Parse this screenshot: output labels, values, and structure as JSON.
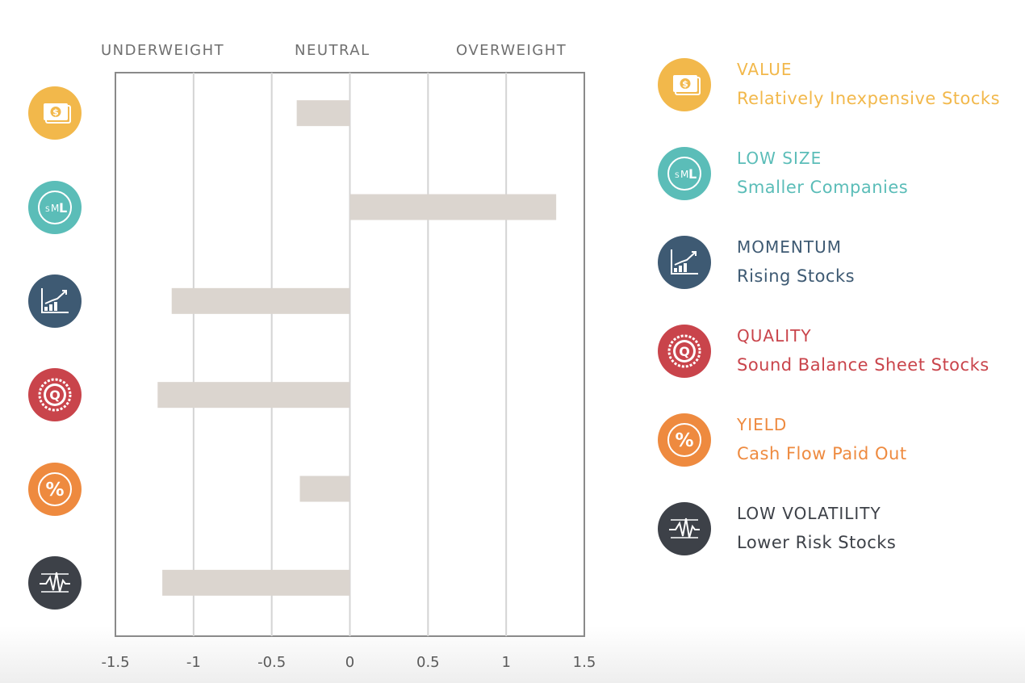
{
  "sentiment_labels": {
    "underweight": "UNDERWEIGHT",
    "neutral": "NEUTRAL",
    "overweight": "OVERWEIGHT"
  },
  "factors": [
    {
      "key": "value",
      "title": "VALUE",
      "description": "Relatively Inexpensive Stocks",
      "color": "#f2b84b",
      "icon": "dollar-bill-icon"
    },
    {
      "key": "low-size",
      "title": "LOW SIZE",
      "description": "Smaller Companies",
      "color": "#5bbdb8",
      "icon": "sml-size-icon"
    },
    {
      "key": "momentum",
      "title": "MOMENTUM",
      "description": "Rising Stocks",
      "color": "#3e5a73",
      "icon": "rising-chart-icon"
    },
    {
      "key": "quality",
      "title": "QUALITY",
      "description": "Sound Balance Sheet Stocks",
      "color": "#c9444b",
      "icon": "quality-seal-icon"
    },
    {
      "key": "yield",
      "title": "YIELD",
      "description": "Cash Flow Paid Out",
      "color": "#ee8a3f",
      "icon": "percent-icon"
    },
    {
      "key": "low-volatility",
      "title": "LOW VOLATILITY",
      "description": "Lower Risk Stocks",
      "color": "#3d4148",
      "icon": "volatility-wave-icon"
    }
  ],
  "chart_data": {
    "type": "bar",
    "orientation": "horizontal",
    "categories": [
      "VALUE",
      "LOW SIZE",
      "MOMENTUM",
      "QUALITY",
      "YIELD",
      "LOW VOLATILITY"
    ],
    "values": [
      -0.34,
      1.32,
      -1.14,
      -1.23,
      -0.32,
      -1.2
    ],
    "xlim": [
      -1.5,
      1.5
    ],
    "xticks": [
      -1.5,
      -1,
      -0.5,
      0,
      0.5,
      1,
      1.5
    ],
    "xtick_labels": [
      "-1.5",
      "-1",
      "-0.5",
      "0",
      "0.5",
      "1",
      "1.5"
    ],
    "bar_color": "#dbd5cf",
    "grid": true,
    "legend_position": "right"
  }
}
